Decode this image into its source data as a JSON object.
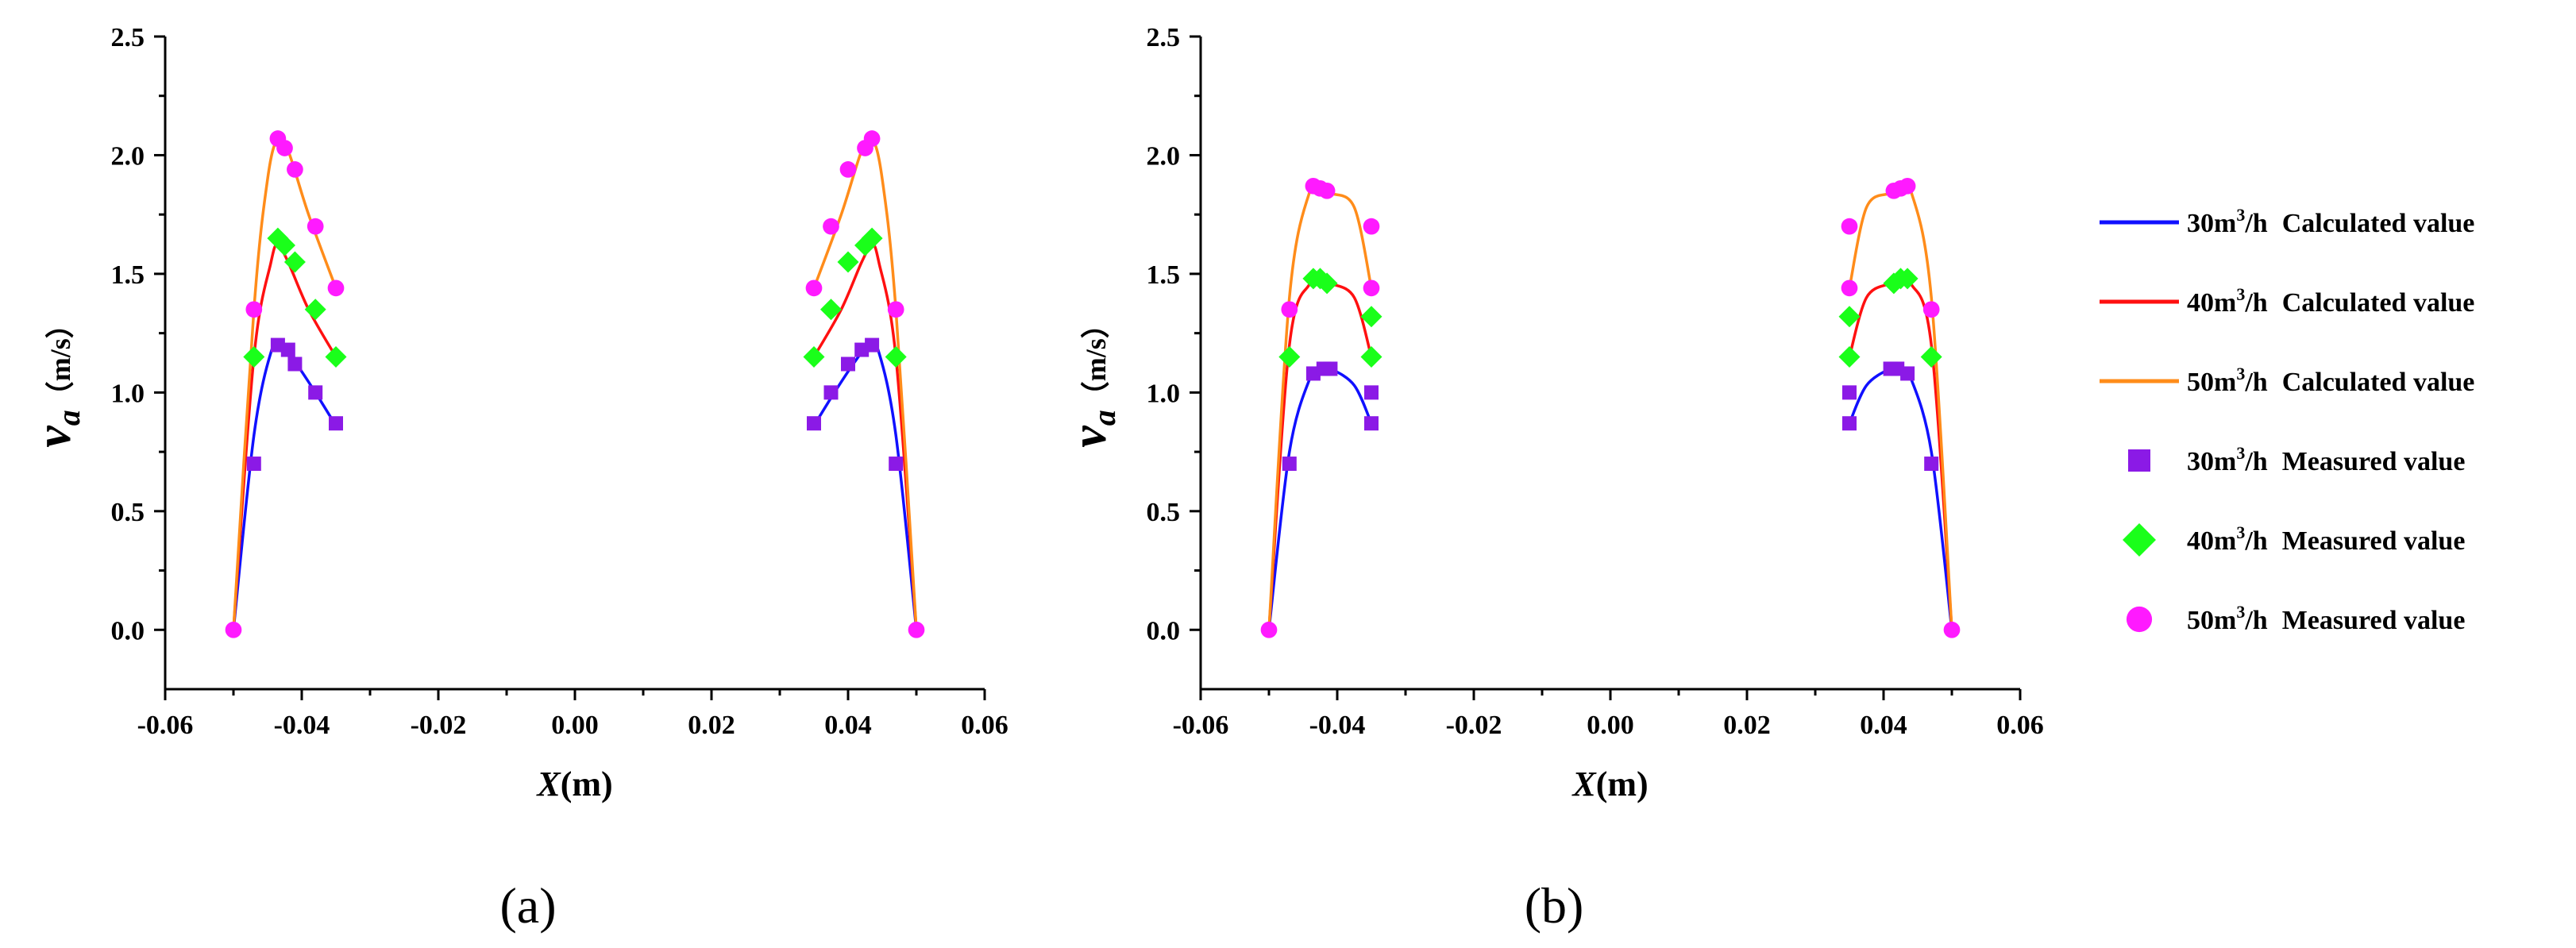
{
  "chart_data": [
    {
      "id": "a",
      "type": "line",
      "subfigure_label": "(a)",
      "xlabel": "X",
      "xlabel_unit": "(m)",
      "ylabel": "v",
      "ylabel_subscript": "a",
      "ylabel_unit": "（m/s）",
      "xlim": [
        -0.06,
        0.06
      ],
      "ylim": [
        -0.25,
        2.5
      ],
      "xticks": [
        "-0.06",
        "-0.04",
        "-0.02",
        "0.00",
        "0.02",
        "0.04",
        "0.06"
      ],
      "yticks": [
        "0.0",
        "0.5",
        "1.0",
        "1.5",
        "2.0",
        "2.5"
      ],
      "series": [
        {
          "name": "30 Calculated value",
          "kind": "line",
          "color": "#1010ff",
          "segments": [
            {
              "x": [
                -0.05,
                -0.047,
                -0.0445,
                -0.043,
                -0.041,
                -0.038,
                -0.035
              ],
              "y": [
                0.0,
                0.82,
                1.17,
                1.2,
                1.13,
                1.0,
                0.86
              ]
            },
            {
              "x": [
                0.035,
                0.038,
                0.041,
                0.043,
                0.0445,
                0.047,
                0.05
              ],
              "y": [
                0.86,
                1.0,
                1.13,
                1.2,
                1.17,
                0.82,
                0.0
              ]
            }
          ]
        },
        {
          "name": "40 Calculated value",
          "kind": "line",
          "color": "#ff1010",
          "segments": [
            {
              "x": [
                -0.05,
                -0.047,
                -0.0445,
                -0.0435,
                -0.042,
                -0.039,
                -0.035
              ],
              "y": [
                0.0,
                1.15,
                1.55,
                1.62,
                1.55,
                1.35,
                1.15
              ]
            },
            {
              "x": [
                0.035,
                0.039,
                0.042,
                0.0435,
                0.0445,
                0.047,
                0.05
              ],
              "y": [
                1.15,
                1.35,
                1.55,
                1.62,
                1.55,
                1.15,
                0.0
              ]
            }
          ]
        },
        {
          "name": "50 Calculated value",
          "kind": "line",
          "color": "#ff8c1a",
          "segments": [
            {
              "x": [
                -0.05,
                -0.047,
                -0.045,
                -0.0435,
                -0.042,
                -0.039,
                -0.035
              ],
              "y": [
                0.0,
                1.35,
                1.9,
                2.07,
                2.02,
                1.75,
                1.44
              ]
            },
            {
              "x": [
                0.035,
                0.039,
                0.042,
                0.0435,
                0.045,
                0.047,
                0.05
              ],
              "y": [
                1.44,
                1.75,
                2.02,
                2.07,
                1.9,
                1.35,
                0.0
              ]
            }
          ]
        },
        {
          "name": "30 Measured value",
          "kind": "square",
          "color": "#8b1ae6",
          "x": [
            -0.047,
            -0.0435,
            -0.042,
            -0.041,
            -0.038,
            -0.035,
            0.035,
            0.0375,
            0.04,
            0.042,
            0.0435,
            0.047
          ],
          "y": [
            0.7,
            1.2,
            1.18,
            1.12,
            1.0,
            0.87,
            0.87,
            1.0,
            1.12,
            1.18,
            1.2,
            0.7
          ]
        },
        {
          "name": "40 Measured value",
          "kind": "diamond",
          "color": "#1aff1a",
          "x": [
            -0.047,
            -0.0435,
            -0.0425,
            -0.041,
            -0.038,
            -0.035,
            0.035,
            0.0375,
            0.04,
            0.0425,
            0.0435,
            0.047
          ],
          "y": [
            1.15,
            1.65,
            1.62,
            1.55,
            1.35,
            1.15,
            1.15,
            1.35,
            1.55,
            1.62,
            1.65,
            1.15
          ]
        },
        {
          "name": "50 Measured value",
          "kind": "circle",
          "color": "#ff1aff",
          "x": [
            -0.05,
            -0.047,
            -0.0435,
            -0.0425,
            -0.041,
            -0.038,
            -0.035,
            0.035,
            0.0375,
            0.04,
            0.0425,
            0.0435,
            0.047,
            0.05
          ],
          "y": [
            0.0,
            1.35,
            2.07,
            2.03,
            1.94,
            1.7,
            1.44,
            1.44,
            1.7,
            1.94,
            2.03,
            2.07,
            1.35,
            0.0
          ]
        }
      ]
    },
    {
      "id": "b",
      "type": "line",
      "subfigure_label": "(b)",
      "xlabel": "X",
      "xlabel_unit": "(m)",
      "ylabel": "v",
      "ylabel_subscript": "a",
      "ylabel_unit": "（m/s）",
      "xlim": [
        -0.06,
        0.06
      ],
      "ylim": [
        -0.25,
        2.5
      ],
      "xticks": [
        "-0.06",
        "-0.04",
        "-0.02",
        "0.00",
        "0.02",
        "0.04",
        "0.06"
      ],
      "yticks": [
        "0.0",
        "0.5",
        "1.0",
        "1.5",
        "2.0",
        "2.5"
      ],
      "series": [
        {
          "name": "30 Calculated value",
          "kind": "line",
          "color": "#1010ff",
          "segments": [
            {
              "x": [
                -0.05,
                -0.047,
                -0.044,
                -0.0425,
                -0.041,
                -0.0375,
                -0.035
              ],
              "y": [
                0.0,
                0.75,
                1.06,
                1.1,
                1.1,
                1.03,
                0.87
              ]
            },
            {
              "x": [
                0.035,
                0.0375,
                0.041,
                0.0425,
                0.044,
                0.047,
                0.05
              ],
              "y": [
                0.87,
                1.03,
                1.1,
                1.1,
                1.06,
                0.75,
                0.0
              ]
            }
          ]
        },
        {
          "name": "40 Calculated value",
          "kind": "line",
          "color": "#ff1010",
          "segments": [
            {
              "x": [
                -0.05,
                -0.047,
                -0.044,
                -0.0425,
                -0.041,
                -0.0375,
                -0.035
              ],
              "y": [
                0.0,
                1.2,
                1.46,
                1.48,
                1.46,
                1.4,
                1.15
              ]
            },
            {
              "x": [
                0.035,
                0.0375,
                0.041,
                0.0425,
                0.044,
                0.047,
                0.05
              ],
              "y": [
                1.15,
                1.4,
                1.46,
                1.48,
                1.46,
                1.2,
                0.0
              ]
            }
          ]
        },
        {
          "name": "50 Calculated value",
          "kind": "line",
          "color": "#ff8c1a",
          "segments": [
            {
              "x": [
                -0.05,
                -0.047,
                -0.044,
                -0.0425,
                -0.041,
                -0.0375,
                -0.035
              ],
              "y": [
                0.0,
                1.4,
                1.85,
                1.86,
                1.84,
                1.78,
                1.44
              ]
            },
            {
              "x": [
                0.035,
                0.0375,
                0.041,
                0.0425,
                0.044,
                0.047,
                0.05
              ],
              "y": [
                1.44,
                1.78,
                1.84,
                1.86,
                1.85,
                1.4,
                0.0
              ]
            }
          ]
        },
        {
          "name": "30 Measured value",
          "kind": "square",
          "color": "#8b1ae6",
          "x": [
            -0.047,
            -0.0435,
            -0.042,
            -0.041,
            -0.035,
            -0.035,
            0.035,
            0.035,
            0.041,
            0.042,
            0.0435,
            0.047
          ],
          "y": [
            0.7,
            1.08,
            1.1,
            1.1,
            1.0,
            0.87,
            0.87,
            1.0,
            1.1,
            1.1,
            1.08,
            0.7
          ]
        },
        {
          "name": "40 Measured value",
          "kind": "diamond",
          "color": "#1aff1a",
          "x": [
            -0.047,
            -0.0435,
            -0.0425,
            -0.0415,
            -0.035,
            -0.035,
            0.035,
            0.035,
            0.0415,
            0.0425,
            0.0435,
            0.047
          ],
          "y": [
            1.15,
            1.48,
            1.48,
            1.46,
            1.32,
            1.15,
            1.15,
            1.32,
            1.46,
            1.48,
            1.48,
            1.15
          ]
        },
        {
          "name": "50 Measured value",
          "kind": "circle",
          "color": "#ff1aff",
          "x": [
            -0.05,
            -0.047,
            -0.0435,
            -0.0425,
            -0.0415,
            -0.035,
            -0.035,
            0.035,
            0.035,
            0.0415,
            0.0425,
            0.0435,
            0.047,
            0.05
          ],
          "y": [
            0.0,
            1.35,
            1.87,
            1.86,
            1.85,
            1.7,
            1.44,
            1.44,
            1.7,
            1.85,
            1.86,
            1.87,
            1.35,
            0.0
          ]
        }
      ]
    }
  ],
  "legend": {
    "placement": "right",
    "items": [
      {
        "kind": "line",
        "color": "#1010ff",
        "flow": "30",
        "unit": "m",
        "exp": "3",
        "per": "/h",
        "label": "Calculated value"
      },
      {
        "kind": "line",
        "color": "#ff1010",
        "flow": "40",
        "unit": "m",
        "exp": "3",
        "per": "/h",
        "label": "Calculated value"
      },
      {
        "kind": "line",
        "color": "#ff8c1a",
        "flow": "50",
        "unit": "m",
        "exp": "3",
        "per": "/h",
        "label": "Calculated value"
      },
      {
        "kind": "square",
        "color": "#8b1ae6",
        "flow": "30",
        "unit": "m",
        "exp": "3",
        "per": "/h",
        "label": "Measured value"
      },
      {
        "kind": "diamond",
        "color": "#1aff1a",
        "flow": "40",
        "unit": "m",
        "exp": "3",
        "per": "/h",
        "label": "Measured value"
      },
      {
        "kind": "circle",
        "color": "#ff1aff",
        "flow": "50",
        "unit": "m",
        "exp": "3",
        "per": "/h",
        "label": "Measured value"
      }
    ]
  }
}
